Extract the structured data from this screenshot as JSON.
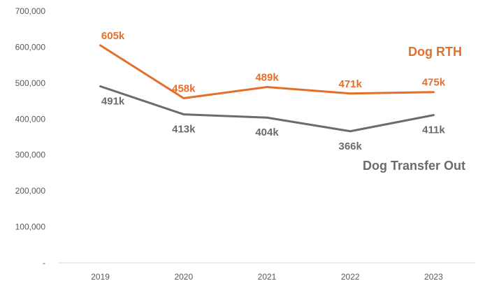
{
  "chart_data": {
    "type": "line",
    "title": "",
    "xlabel": "",
    "ylabel": "",
    "categories": [
      "2019",
      "2020",
      "2021",
      "2022",
      "2023"
    ],
    "ylim": [
      0,
      700000
    ],
    "y_ticks": [
      {
        "value": 0,
        "label": "-"
      },
      {
        "value": 100000,
        "label": "100,000"
      },
      {
        "value": 200000,
        "label": "200,000"
      },
      {
        "value": 300000,
        "label": "300,000"
      },
      {
        "value": 400000,
        "label": "400,000"
      },
      {
        "value": 500000,
        "label": "500,000"
      },
      {
        "value": 600000,
        "label": "600,000"
      },
      {
        "value": 700000,
        "label": "700,000"
      }
    ],
    "grid": false,
    "legend": "inline labels",
    "series": [
      {
        "name": "Dog RTH",
        "color": "#e36f2a",
        "values": [
          605000,
          458000,
          489000,
          471000,
          475000
        ],
        "labels": [
          "605k",
          "458k",
          "489k",
          "471k",
          "475k"
        ],
        "label_position": "above"
      },
      {
        "name": "Dog Transfer Out",
        "color": "#6b6b6b",
        "values": [
          491000,
          413000,
          404000,
          366000,
          411000
        ],
        "labels": [
          "491k",
          "413k",
          "404k",
          "366k",
          "411k"
        ],
        "label_position": "below"
      }
    ]
  }
}
